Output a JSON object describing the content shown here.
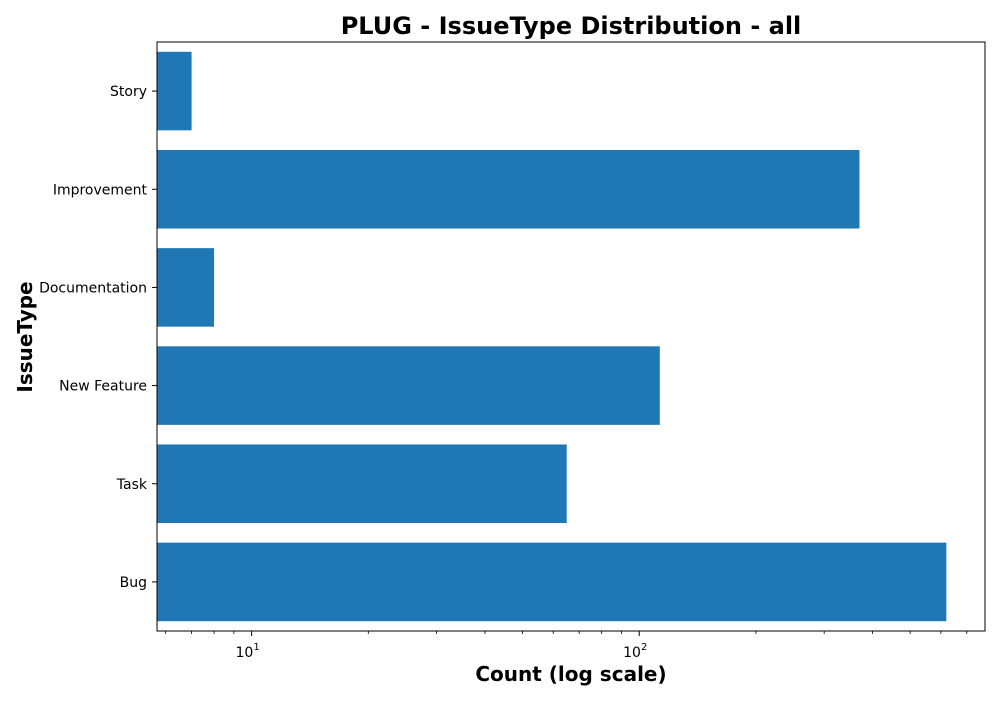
{
  "chart_data": {
    "type": "bar",
    "orientation": "horizontal",
    "title": "PLUG - IssueType Distribution - all",
    "xlabel": "Count (log scale)",
    "ylabel": "IssueType",
    "x_scale": "log",
    "xlim": [
      5.7,
      780
    ],
    "x_major_ticks": [
      {
        "value": 10,
        "base": "10",
        "exponent": "1"
      },
      {
        "value": 100,
        "base": "10",
        "exponent": "2"
      }
    ],
    "categories": [
      "Bug",
      "Task",
      "New Feature",
      "Documentation",
      "Improvement",
      "Story"
    ],
    "values": [
      620,
      65,
      113,
      8,
      370,
      7
    ],
    "bar_color": "#1f77b4",
    "grid": false,
    "legend": "none"
  }
}
